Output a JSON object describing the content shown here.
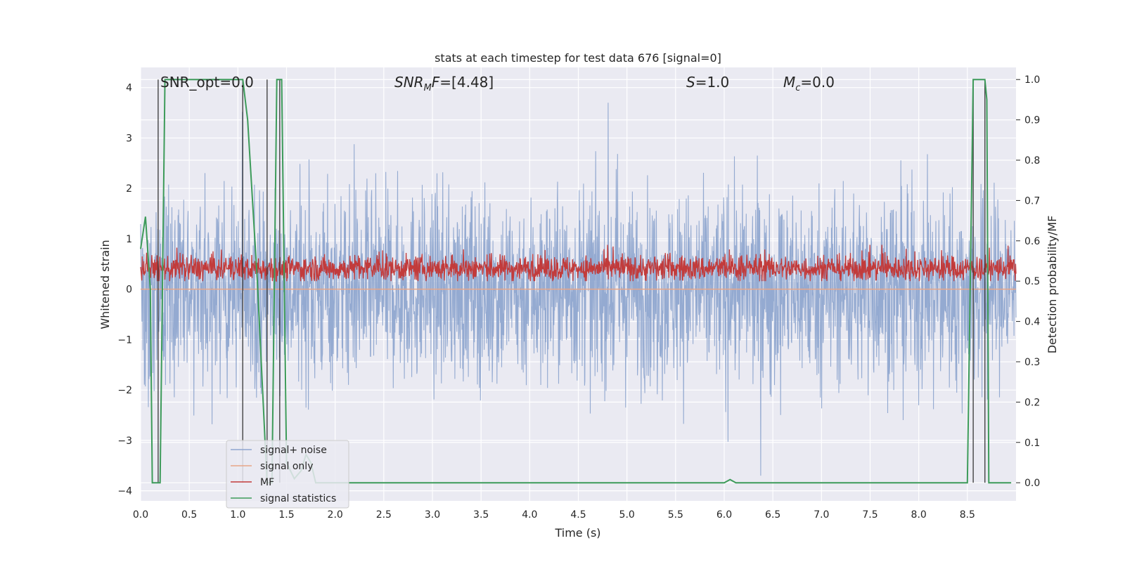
{
  "chart_data": {
    "type": "line",
    "title": "stats at each timestep for test data 676 [signal=0]",
    "xlabel": "Time (s)",
    "ylabel": "Whitened strain",
    "y2label": "Detection probability/MF",
    "xlim": [
      0.0,
      9.0
    ],
    "ylim": [
      -4.2,
      4.4
    ],
    "y2lim": [
      -0.045,
      1.03
    ],
    "x_ticks": [
      "0.0",
      "0.5",
      "1.0",
      "1.5",
      "2.0",
      "2.5",
      "3.0",
      "3.5",
      "4.0",
      "4.5",
      "5.0",
      "5.5",
      "6.0",
      "6.5",
      "7.0",
      "7.5",
      "8.0",
      "8.5"
    ],
    "y_ticks": [
      "−4",
      "−3",
      "−2",
      "−1",
      "0",
      "1",
      "2",
      "3",
      "4"
    ],
    "y2_ticks": [
      "0.0",
      "0.1",
      "0.2",
      "0.3",
      "0.4",
      "0.5",
      "0.6",
      "0.7",
      "0.8",
      "0.9",
      "1.0"
    ],
    "grid": true,
    "annotations": [
      {
        "text": "SNR_opt=0.0",
        "x": 0.19,
        "y": 4.05
      },
      {
        "text_italic": "SNR",
        "text_sub": "M",
        "text_italic2": "F",
        "text_rest": "=[4.48]",
        "x": 2.6,
        "y": 4.05
      },
      {
        "text_italic": "S",
        "text_rest": "=1.0",
        "x": 5.6,
        "y": 4.05
      },
      {
        "text_italic": "M",
        "text_sub": "c",
        "text_rest": "=0.0",
        "x": 6.6,
        "y": 4.05
      }
    ],
    "legend": {
      "placement": "lower-left",
      "entries": [
        {
          "label": "signal+ noise",
          "color": "#8fa6cf"
        },
        {
          "label": "signal only",
          "color": "#e8a687"
        },
        {
          "label": "MF",
          "color": "#c23b3b"
        },
        {
          "label": "signal statistics",
          "color": "#3d9b5a"
        }
      ]
    },
    "series": [
      {
        "name": "signal+ noise",
        "axis": "left",
        "color": "#8fa6cf",
        "kind": "noise",
        "amplitude_range": [
          -3.7,
          3.7
        ],
        "x_range": [
          0.0,
          9.0
        ]
      },
      {
        "name": "signal only",
        "axis": "left",
        "color": "#e8a687",
        "values_constant": 0.0
      },
      {
        "name": "MF",
        "axis": "right",
        "color": "#c23b3b",
        "kind": "noise",
        "range": [
          0.5,
          0.59
        ],
        "x_range": [
          0.0,
          9.0
        ]
      },
      {
        "name": "signal statistics",
        "axis": "right",
        "color": "#3d9b5a",
        "x": [
          0.0,
          0.05,
          0.1,
          0.12,
          0.18,
          0.2,
          0.25,
          0.3,
          0.4,
          0.6,
          0.8,
          1.0,
          1.05,
          1.1,
          1.2,
          1.3,
          1.32,
          1.35,
          1.4,
          1.45,
          1.5,
          1.58,
          1.65,
          1.7,
          1.75,
          1.8,
          1.85,
          1.9,
          2.0,
          3.0,
          4.0,
          5.0,
          5.5,
          6.0,
          6.06,
          6.12,
          7.0,
          8.0,
          8.5,
          8.56,
          8.62,
          8.68,
          8.7,
          8.72,
          8.8,
          8.95
        ],
        "y": [
          0.58,
          0.66,
          0.48,
          0.0,
          0.0,
          0.0,
          1.0,
          1.0,
          1.0,
          1.0,
          1.0,
          1.0,
          1.0,
          0.9,
          0.5,
          0.0,
          0.0,
          0.0,
          1.0,
          1.0,
          0.05,
          0.01,
          0.03,
          0.07,
          0.05,
          0.0,
          0.0,
          0.0,
          0.0,
          0.0,
          0.0,
          0.0,
          0.0,
          0.0,
          0.008,
          0.0,
          0.0,
          0.0,
          0.0,
          1.0,
          1.0,
          1.0,
          0.95,
          0.0,
          0.0,
          0.0
        ]
      }
    ],
    "vertical_lines": [
      0.18,
      1.05,
      1.3,
      1.43,
      8.56,
      8.68
    ]
  }
}
